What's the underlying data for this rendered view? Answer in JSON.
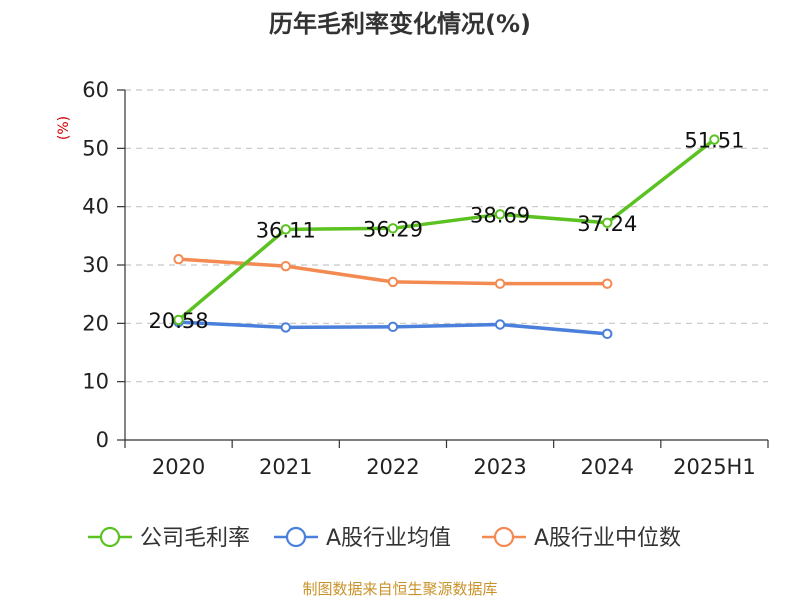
{
  "chart_data": {
    "type": "line",
    "title": "历年毛利率变化情况(%)",
    "ylabel": "(%)",
    "xlabel": "",
    "categories": [
      "2020",
      "2021",
      "2022",
      "2023",
      "2024",
      "2025H1"
    ],
    "ylim": [
      0,
      60
    ],
    "yticks": [
      0,
      10,
      20,
      30,
      40,
      50,
      60
    ],
    "grid": "horizontal dashed",
    "legend_position": "bottom",
    "series": [
      {
        "name": "公司毛利率",
        "color": "#5bc221",
        "values": [
          20.58,
          36.11,
          36.29,
          38.69,
          37.24,
          51.51
        ],
        "labels": [
          "20.58",
          "36.11",
          "36.29",
          "38.69",
          "37.24",
          "51.51"
        ]
      },
      {
        "name": "A股行业均值",
        "color": "#4a7fdb",
        "values": [
          20.2,
          19.3,
          19.4,
          19.8,
          18.2,
          null
        ]
      },
      {
        "name": "A股行业中位数",
        "color": "#f28a52",
        "values": [
          31.0,
          29.8,
          27.1,
          26.8,
          26.8,
          null
        ]
      }
    ]
  },
  "footer": {
    "source": "制图数据来自恒生聚源数据库"
  }
}
